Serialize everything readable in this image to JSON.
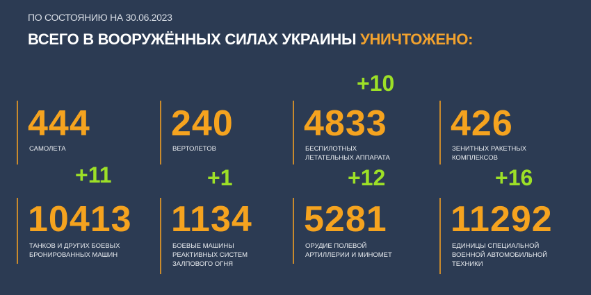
{
  "header": {
    "date_line": "ПО СОСТОЯНИЮ НА 30.06.2023",
    "title_main": "ВСЕГО В ВООРУЖЁННЫХ СИЛАХ УКРАИНЫ",
    "title_highlight": "УНИЧТОЖЕНО:"
  },
  "colors": {
    "background": "#2c3b53",
    "number": "#f5a31f",
    "delta": "#9de027",
    "highlight": "#f2a22e"
  },
  "stats": [
    {
      "value": "444",
      "label": "САМОЛЕТА",
      "delta": ""
    },
    {
      "value": "240",
      "label": "ВЕРТОЛЕТОВ",
      "delta": ""
    },
    {
      "value": "4833",
      "label": "БЕСПИЛОТНЫХ\nЛЕТАТЕЛЬНЫХ АППАРАТА",
      "delta": "+10"
    },
    {
      "value": "426",
      "label": "ЗЕНИТНЫХ РАКЕТНЫХ\nКОМПЛЕКСОВ",
      "delta": ""
    },
    {
      "value": "10413",
      "label": "ТАНКОВ И ДРУГИХ БОЕВЫХ\nБРОНИРОВАННЫХ МАШИН",
      "delta": "+11"
    },
    {
      "value": "1134",
      "label": "БОЕВЫЕ МАШИНЫ\nРЕАКТИВНЫХ СИСТЕМ\nЗАЛПОВОГО ОГНЯ",
      "delta": "+1"
    },
    {
      "value": "5281",
      "label": "ОРУДИЕ ПОЛЕВОЙ\nАРТИЛЛЕРИИ И МИНОМЕТ",
      "delta": "+12"
    },
    {
      "value": "11292",
      "label": "ЕДИНИЦЫ СПЕЦИАЛЬНОЙ\nВОЕННОЙ АВТОМОБИЛЬНОЙ\nТЕХНИКИ",
      "delta": "+16"
    }
  ]
}
